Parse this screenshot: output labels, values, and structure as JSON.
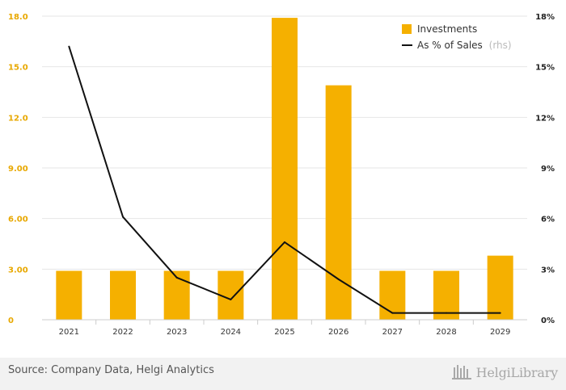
{
  "chart_data": {
    "type": "bar",
    "categories": [
      "2021",
      "2022",
      "2023",
      "2024",
      "2025",
      "2026",
      "2027",
      "2028",
      "2029"
    ],
    "series": [
      {
        "name": "Investments",
        "kind": "bar",
        "axis": "left",
        "color": "#f5b000",
        "values": [
          2.9,
          2.9,
          2.9,
          2.9,
          17.9,
          13.9,
          2.9,
          2.9,
          3.8
        ]
      },
      {
        "name": "As % of Sales",
        "name_suffix": "(rhs)",
        "kind": "line",
        "axis": "right",
        "color": "#111111",
        "values": [
          16.2,
          6.1,
          2.5,
          1.2,
          4.6,
          2.4,
          0.4,
          0.4,
          0.4
        ]
      }
    ],
    "y_left": {
      "ticks": [
        "0",
        "3.00",
        "6.00",
        "9.00",
        "12.0",
        "15.0",
        "18.0"
      ],
      "range": [
        0,
        18
      ],
      "color": "#e8a800"
    },
    "y_right": {
      "ticks": [
        "0%",
        "3%",
        "6%",
        "9%",
        "12%",
        "15%",
        "18%"
      ],
      "range": [
        0,
        18
      ]
    },
    "grid": true,
    "legend_position": "top-right"
  },
  "footer": {
    "source": "Source: Company Data, Helgi Analytics",
    "logo_text": "HelgiLibrary"
  },
  "icons": {
    "logo": "library-building-icon"
  }
}
